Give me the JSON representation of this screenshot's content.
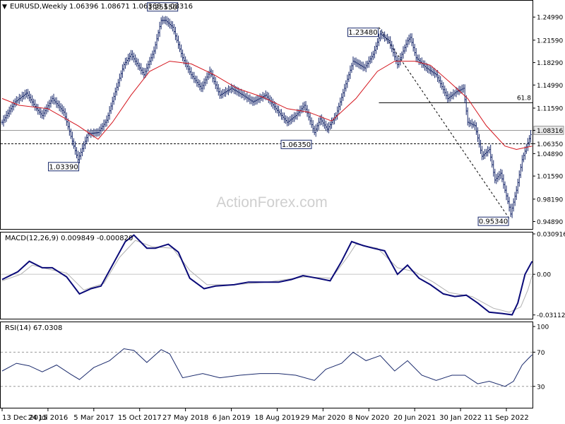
{
  "header": {
    "symbol_label": "EURUSD,Weekly",
    "ohlc": "1.06396 1.08671 1.06368 1.08316",
    "caret": "▼"
  },
  "watermark": "ActionForex.com",
  "colors": {
    "price": "#1a2a6c",
    "sma": "#d4141c",
    "macd": "#0a0a78",
    "signal": "#b0b0b0",
    "rsi": "#1a2a6c",
    "frame": "#000000"
  },
  "chart_data": [
    {
      "type": "ohlc",
      "title": "EURUSD,Weekly",
      "ylim": [
        0.938,
        1.274
      ],
      "y_ticks": [
        "1.24990",
        "1.21590",
        "1.18290",
        "1.14990",
        "1.11590",
        "1.08316",
        "1.06350",
        "1.04890",
        "1.01590",
        "0.98190",
        "0.94890"
      ],
      "y_tick_values": [
        1.2499,
        1.2159,
        1.1829,
        1.1499,
        1.1159,
        1.08316,
        1.0635,
        1.0489,
        1.0159,
        0.9819,
        0.9489
      ],
      "x_ticks": [
        "13 Dec 2015",
        "24 Jul 2016",
        "5 Mar 2017",
        "15 Oct 2017",
        "27 May 2018",
        "6 Jan 2019",
        "18 Aug 2019",
        "29 Mar 2020",
        "8 Nov 2020",
        "20 Jun 2021",
        "30 Jan 2022",
        "11 Sep 2022"
      ],
      "price_path": [
        [
          "2015-12-13",
          1.095
        ],
        [
          "2016-02-14",
          1.125
        ],
        [
          "2016-04-10",
          1.138
        ],
        [
          "2016-05-29",
          1.115
        ],
        [
          "2016-06-26",
          1.105
        ],
        [
          "2016-08-14",
          1.13
        ],
        [
          "2016-10-09",
          1.11
        ],
        [
          "2016-11-27",
          1.06
        ],
        [
          "2016-12-18",
          1.04
        ],
        [
          "2017-02-05",
          1.078
        ],
        [
          "2017-03-26",
          1.08
        ],
        [
          "2017-05-07",
          1.098
        ],
        [
          "2017-06-18",
          1.14
        ],
        [
          "2017-07-30",
          1.18
        ],
        [
          "2017-09-03",
          1.195
        ],
        [
          "2017-11-05",
          1.165
        ],
        [
          "2017-12-24",
          1.2
        ],
        [
          "2018-01-28",
          1.245
        ],
        [
          "2018-02-18",
          1.245
        ],
        [
          "2018-03-25",
          1.235
        ],
        [
          "2018-05-13",
          1.19
        ],
        [
          "2018-06-24",
          1.165
        ],
        [
          "2018-08-12",
          1.145
        ],
        [
          "2018-09-23",
          1.17
        ],
        [
          "2018-11-11",
          1.135
        ],
        [
          "2019-01-06",
          1.145
        ],
        [
          "2019-03-03",
          1.135
        ],
        [
          "2019-04-21",
          1.125
        ],
        [
          "2019-06-23",
          1.135
        ],
        [
          "2019-08-11",
          1.115
        ],
        [
          "2019-10-06",
          1.095
        ],
        [
          "2019-11-17",
          1.105
        ],
        [
          "2019-12-29",
          1.12
        ],
        [
          "2020-02-16",
          1.08
        ],
        [
          "2020-03-15",
          1.1
        ],
        [
          "2020-04-19",
          1.085
        ],
        [
          "2020-05-31",
          1.105
        ],
        [
          "2020-07-12",
          1.145
        ],
        [
          "2020-08-23",
          1.185
        ],
        [
          "2020-10-18",
          1.175
        ],
        [
          "2020-11-29",
          1.195
        ],
        [
          "2021-01-03",
          1.225
        ],
        [
          "2021-02-14",
          1.215
        ],
        [
          "2021-03-28",
          1.18
        ],
        [
          "2021-05-16",
          1.215
        ],
        [
          "2021-05-30",
          1.22
        ],
        [
          "2021-06-27",
          1.19
        ],
        [
          "2021-08-15",
          1.175
        ],
        [
          "2021-10-03",
          1.165
        ],
        [
          "2021-11-28",
          1.13
        ],
        [
          "2022-01-09",
          1.14
        ],
        [
          "2022-02-13",
          1.145
        ],
        [
          "2022-03-06",
          1.095
        ],
        [
          "2022-04-10",
          1.09
        ],
        [
          "2022-05-15",
          1.045
        ],
        [
          "2022-06-19",
          1.055
        ],
        [
          "2022-07-17",
          1.01
        ],
        [
          "2022-08-14",
          1.02
        ],
        [
          "2022-09-25",
          0.97
        ],
        [
          "2022-10-02",
          0.96
        ],
        [
          "2022-10-30",
          0.995
        ],
        [
          "2022-11-27",
          1.04
        ],
        [
          "2022-12-25",
          1.065
        ],
        [
          "2023-01-15",
          1.083
        ]
      ],
      "sma_path": [
        [
          "2015-12-13",
          1.13
        ],
        [
          "2016-03-06",
          1.12
        ],
        [
          "2016-07-24",
          1.115
        ],
        [
          "2016-12-18",
          1.09
        ],
        [
          "2017-03-26",
          1.07
        ],
        [
          "2017-06-04",
          1.095
        ],
        [
          "2017-09-03",
          1.135
        ],
        [
          "2017-12-03",
          1.17
        ],
        [
          "2018-03-11",
          1.185
        ],
        [
          "2018-06-24",
          1.181
        ],
        [
          "2018-10-14",
          1.165
        ],
        [
          "2019-02-03",
          1.145
        ],
        [
          "2019-06-09",
          1.132
        ],
        [
          "2019-10-06",
          1.115
        ],
        [
          "2020-01-19",
          1.11
        ],
        [
          "2020-05-10",
          1.097
        ],
        [
          "2020-09-06",
          1.13
        ],
        [
          "2020-12-20",
          1.17
        ],
        [
          "2021-03-14",
          1.185
        ],
        [
          "2021-06-20",
          1.185
        ],
        [
          "2021-09-05",
          1.179
        ],
        [
          "2021-12-05",
          1.155
        ],
        [
          "2022-03-06",
          1.13
        ],
        [
          "2022-06-05",
          1.09
        ],
        [
          "2022-09-04",
          1.06
        ],
        [
          "2022-10-30",
          1.055
        ],
        [
          "2023-01-15",
          1.06
        ]
      ],
      "annotations": [
        {
          "text": "1.25550",
          "date": "2018-02-04",
          "value": 1.2555,
          "anchor": "above"
        },
        {
          "text": "1.23480",
          "date": "2020-12-27",
          "value": 1.2348,
          "anchor": "left"
        },
        {
          "text": "1.06350",
          "date": "2020-02-16",
          "value": 1.0635,
          "anchor": "left"
        },
        {
          "text": "1.03390",
          "date": "2016-12-25",
          "value": 1.0339,
          "anchor": "left"
        },
        {
          "text": "0.95340",
          "date": "2022-09-25",
          "value": 0.9534,
          "anchor": "left"
        }
      ],
      "horizontal_lines": [
        {
          "value": 1.08316,
          "style": "solid",
          "color": "#9a9a9a",
          "tag": "1.08316",
          "tag_style": "filled"
        },
        {
          "value": 1.0635,
          "style": "dashed",
          "color": "#000000",
          "tag": "1.06350",
          "tag_style": "plain"
        },
        {
          "value": 1.1238,
          "from_date": "2020-12-27",
          "style": "solid",
          "color": "#000000",
          "label": "61.8"
        }
      ],
      "trendline": {
        "from": [
          "2020-12-27",
          1.2348
        ],
        "to": [
          "2022-09-25",
          0.9534
        ],
        "style": "dashed"
      }
    },
    {
      "type": "line",
      "title": "MACD(12,26,9) 0.009849 -0.000820",
      "ylim": [
        -0.034,
        0.032
      ],
      "y_ticks": [
        "0.030916",
        "0.00",
        "-0.031124"
      ],
      "y_tick_values": [
        0.030916,
        0.0,
        -0.031124
      ],
      "series": [
        {
          "key": "macd",
          "points": [
            [
              "2015-12-13",
              -0.004
            ],
            [
              "2016-02-28",
              0.002
            ],
            [
              "2016-04-24",
              0.01
            ],
            [
              "2016-06-26",
              0.005
            ],
            [
              "2016-08-14",
              0.005
            ],
            [
              "2016-10-23",
              -0.002
            ],
            [
              "2016-12-25",
              -0.015
            ],
            [
              "2017-02-19",
              -0.011
            ],
            [
              "2017-04-09",
              -0.009
            ],
            [
              "2017-06-04",
              0.007
            ],
            [
              "2017-08-06",
              0.025
            ],
            [
              "2017-09-17",
              0.03
            ],
            [
              "2017-11-19",
              0.02
            ],
            [
              "2017-12-31",
              0.02
            ],
            [
              "2018-03-04",
              0.023
            ],
            [
              "2018-04-22",
              0.017
            ],
            [
              "2018-06-17",
              -0.003
            ],
            [
              "2018-08-26",
              -0.011
            ],
            [
              "2018-10-21",
              -0.009
            ],
            [
              "2019-01-20",
              -0.008
            ],
            [
              "2019-03-31",
              -0.006
            ],
            [
              "2019-06-16",
              -0.006
            ],
            [
              "2019-08-25",
              -0.006
            ],
            [
              "2019-10-27",
              -0.004
            ],
            [
              "2019-12-22",
              -0.001
            ],
            [
              "2020-03-01",
              -0.003
            ],
            [
              "2020-05-03",
              -0.005
            ],
            [
              "2020-06-28",
              0.01
            ],
            [
              "2020-08-16",
              0.025
            ],
            [
              "2020-10-11",
              0.022
            ],
            [
              "2020-11-29",
              0.02
            ],
            [
              "2021-01-24",
              0.018
            ],
            [
              "2021-03-28",
              0.0
            ],
            [
              "2021-05-16",
              0.007
            ],
            [
              "2021-07-11",
              -0.003
            ],
            [
              "2021-09-05",
              -0.008
            ],
            [
              "2021-11-07",
              -0.015
            ],
            [
              "2022-01-02",
              -0.017
            ],
            [
              "2022-02-27",
              -0.016
            ],
            [
              "2022-04-24",
              -0.022
            ],
            [
              "2022-06-19",
              -0.029
            ],
            [
              "2022-08-21",
              -0.03
            ],
            [
              "2022-10-09",
              -0.031
            ],
            [
              "2022-11-06",
              -0.022
            ],
            [
              "2022-12-11",
              0.0
            ],
            [
              "2023-01-15",
              0.01
            ]
          ]
        },
        {
          "key": "signal",
          "points": [
            [
              "2015-12-13",
              -0.005
            ],
            [
              "2016-03-13",
              0.0
            ],
            [
              "2016-05-08",
              0.007
            ],
            [
              "2016-07-24",
              0.004
            ],
            [
              "2016-10-23",
              0.001
            ],
            [
              "2017-01-15",
              -0.012
            ],
            [
              "2017-04-23",
              -0.007
            ],
            [
              "2017-07-09",
              0.013
            ],
            [
              "2017-09-24",
              0.026
            ],
            [
              "2017-12-17",
              0.021
            ],
            [
              "2018-03-25",
              0.02
            ],
            [
              "2018-06-17",
              0.003
            ],
            [
              "2018-09-09",
              -0.008
            ],
            [
              "2019-01-20",
              -0.008
            ],
            [
              "2019-06-30",
              -0.006
            ],
            [
              "2019-12-29",
              -0.002
            ],
            [
              "2020-05-10",
              -0.003
            ],
            [
              "2020-07-26",
              0.013
            ],
            [
              "2020-09-06",
              0.023
            ],
            [
              "2020-12-20",
              0.02
            ],
            [
              "2021-03-28",
              0.005
            ],
            [
              "2021-06-20",
              0.002
            ],
            [
              "2021-09-19",
              -0.006
            ],
            [
              "2021-12-05",
              -0.014
            ],
            [
              "2022-03-27",
              -0.017
            ],
            [
              "2022-07-10",
              -0.026
            ],
            [
              "2022-09-25",
              -0.029
            ],
            [
              "2022-11-20",
              -0.025
            ],
            [
              "2022-12-25",
              -0.012
            ],
            [
              "2023-01-15",
              -0.001
            ]
          ]
        }
      ]
    },
    {
      "type": "line",
      "title": "RSI(14) 67.0308",
      "ylim": [
        5,
        105
      ],
      "y_ticks": [
        "100",
        "70",
        "30"
      ],
      "y_tick_values": [
        100,
        70,
        30
      ],
      "reference_lines": [
        70,
        30
      ],
      "series": [
        {
          "key": "rsi",
          "points": [
            [
              "2015-12-13",
              48
            ],
            [
              "2016-02-21",
              57
            ],
            [
              "2016-04-24",
              54
            ],
            [
              "2016-06-26",
              47
            ],
            [
              "2016-09-04",
              55
            ],
            [
              "2016-11-13",
              44
            ],
            [
              "2016-12-25",
              38
            ],
            [
              "2017-03-05",
              52
            ],
            [
              "2017-05-21",
              60
            ],
            [
              "2017-07-30",
              74
            ],
            [
              "2017-09-17",
              72
            ],
            [
              "2017-11-19",
              58
            ],
            [
              "2018-01-28",
              73
            ],
            [
              "2018-03-11",
              68
            ],
            [
              "2018-05-13",
              40
            ],
            [
              "2018-08-19",
              45
            ],
            [
              "2018-11-11",
              40
            ],
            [
              "2019-02-17",
              43
            ],
            [
              "2019-05-26",
              45
            ],
            [
              "2019-08-25",
              45
            ],
            [
              "2019-11-17",
              43
            ],
            [
              "2020-02-16",
              37
            ],
            [
              "2020-04-12",
              50
            ],
            [
              "2020-06-28",
              57
            ],
            [
              "2020-08-23",
              70
            ],
            [
              "2020-10-25",
              60
            ],
            [
              "2021-01-03",
              66
            ],
            [
              "2021-03-14",
              48
            ],
            [
              "2021-05-16",
              60
            ],
            [
              "2021-07-25",
              43
            ],
            [
              "2021-10-03",
              37
            ],
            [
              "2021-12-19",
              43
            ],
            [
              "2022-02-20",
              43
            ],
            [
              "2022-04-24",
              33
            ],
            [
              "2022-06-19",
              36
            ],
            [
              "2022-09-04",
              30
            ],
            [
              "2022-10-16",
              36
            ],
            [
              "2022-11-27",
              55
            ],
            [
              "2022-12-25",
              62
            ],
            [
              "2023-01-15",
              67
            ]
          ]
        }
      ]
    }
  ]
}
